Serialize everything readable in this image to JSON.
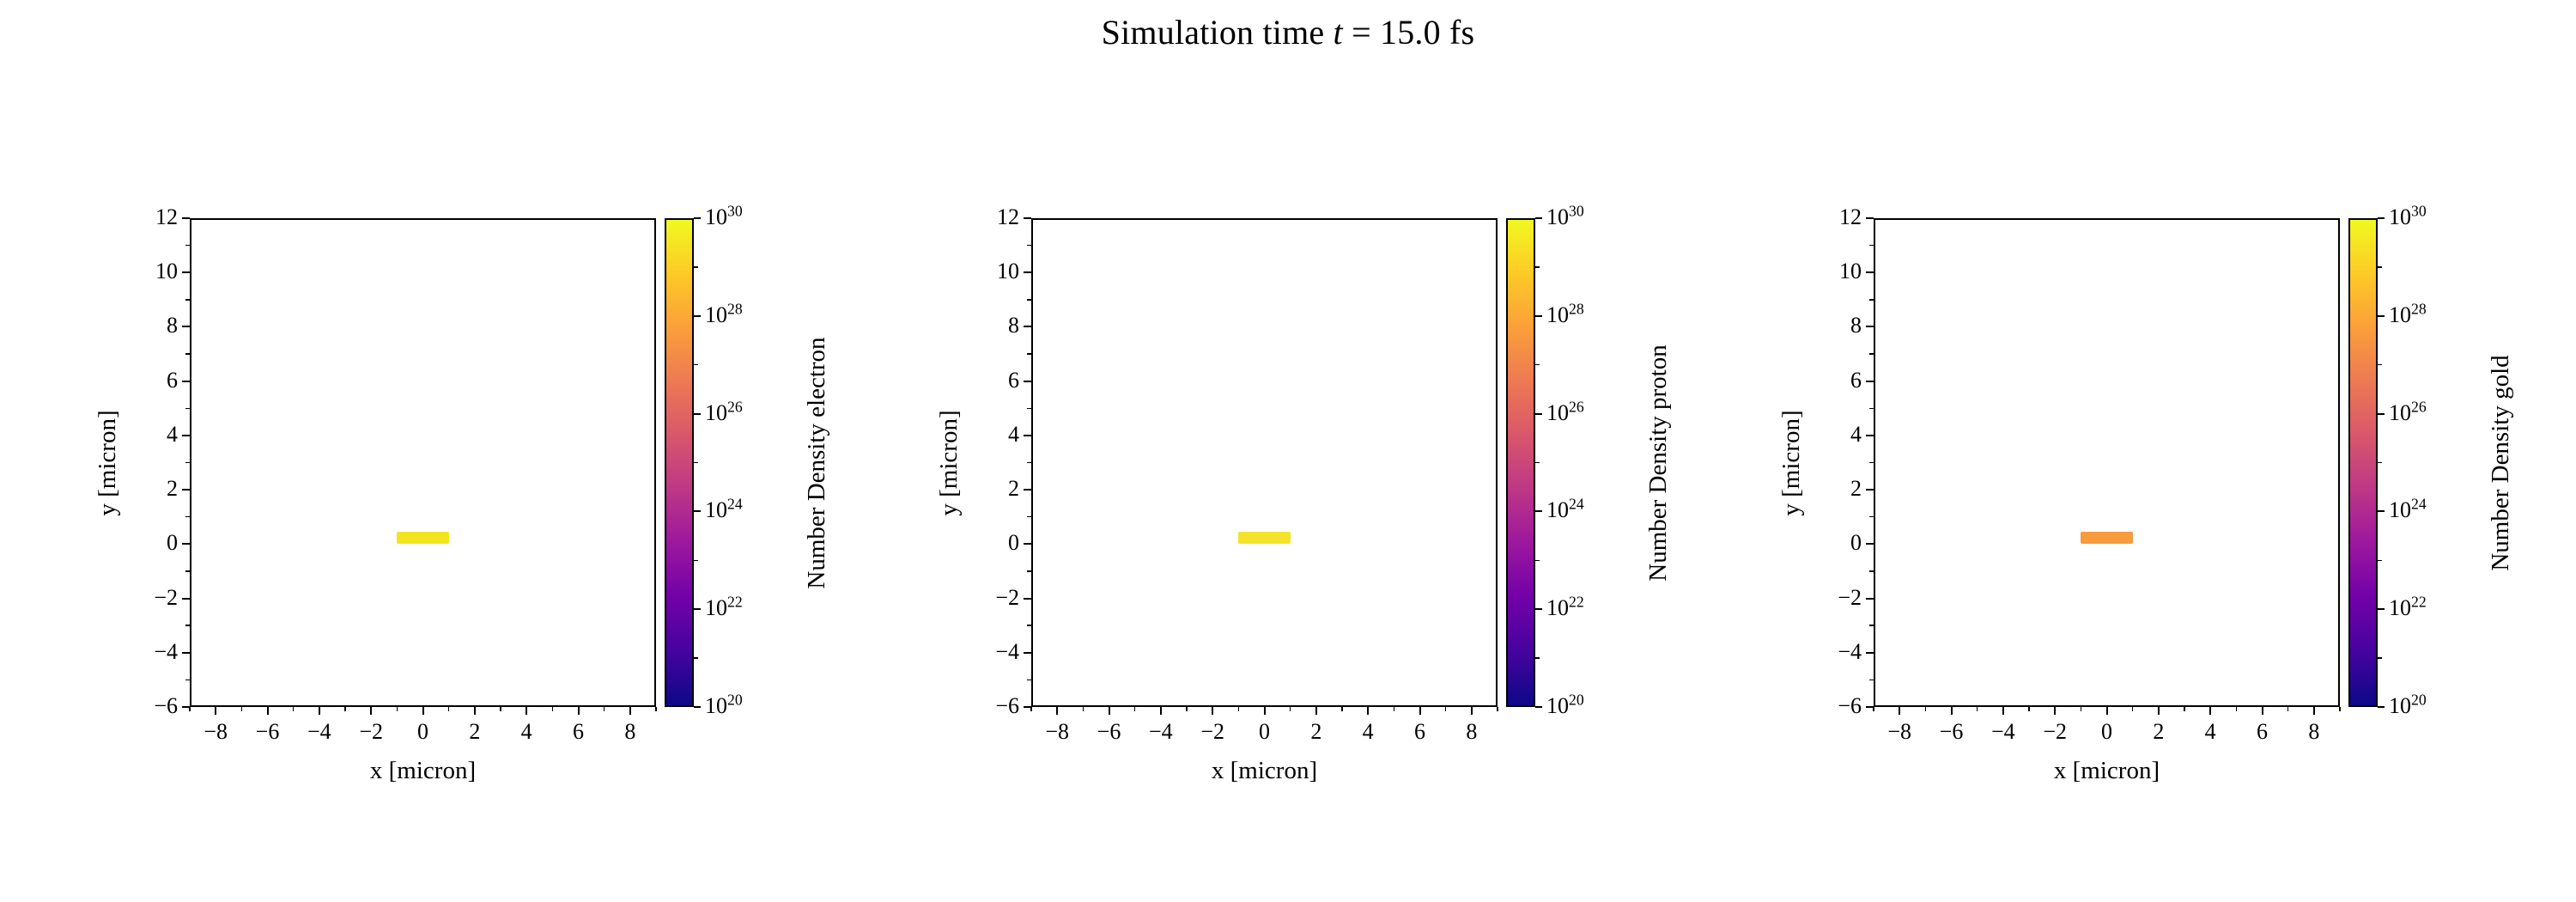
{
  "title": {
    "text": "Simulation time t = 15.0 fs",
    "prefix": "Simulation time ",
    "var": "t",
    "rest": " = 15.0 fs"
  },
  "colors": {
    "background": "#ffffff",
    "axis": "#000000",
    "colormap_name": "plasma",
    "plasma_stops": [
      "#0d0887",
      "#46039f",
      "#7201a8",
      "#9c179e",
      "#bd3786",
      "#d8576b",
      "#ed7953",
      "#fb9f3a",
      "#fdca26",
      "#f0f921"
    ]
  },
  "chart_data": [
    {
      "type": "heatmap",
      "species": "electron",
      "xlabel": "x [micron]",
      "ylabel": "y [micron]",
      "xlim": [
        -9,
        9
      ],
      "ylim": [
        -6,
        12
      ],
      "xticks": [
        -8,
        -6,
        -4,
        -2,
        0,
        2,
        4,
        6,
        8
      ],
      "yticks": [
        -6,
        -4,
        -2,
        0,
        2,
        4,
        6,
        8,
        10,
        12
      ],
      "grid": false,
      "colorbar": {
        "label": "Number Density electron",
        "scale": "log",
        "min_exp": 20,
        "max_exp": 30,
        "tick_exponents": [
          30,
          28,
          26,
          24,
          22,
          20
        ],
        "colormap": "plasma"
      },
      "features": [
        {
          "shape": "rect",
          "x": [
            -1,
            1
          ],
          "y": [
            0,
            0.45
          ],
          "color": "#f2e51e",
          "description": "thin dense slab near y=0, density near 1e30 (top of colormap)"
        }
      ]
    },
    {
      "type": "heatmap",
      "species": "proton",
      "xlabel": "x [micron]",
      "ylabel": "y [micron]",
      "xlim": [
        -9,
        9
      ],
      "ylim": [
        -6,
        12
      ],
      "xticks": [
        -8,
        -6,
        -4,
        -2,
        0,
        2,
        4,
        6,
        8
      ],
      "yticks": [
        -6,
        -4,
        -2,
        0,
        2,
        4,
        6,
        8,
        10,
        12
      ],
      "grid": false,
      "colorbar": {
        "label": "Number Density proton",
        "scale": "log",
        "min_exp": 20,
        "max_exp": 30,
        "tick_exponents": [
          30,
          28,
          26,
          24,
          22,
          20
        ],
        "colormap": "plasma"
      },
      "features": [
        {
          "shape": "rect",
          "x": [
            -1,
            1
          ],
          "y": [
            0,
            0.45
          ],
          "color": "#f3e32a",
          "description": "thin dense slab near y=0, density near 1e30 (top of colormap)"
        }
      ]
    },
    {
      "type": "heatmap",
      "species": "gold",
      "xlabel": "x [micron]",
      "ylabel": "y [micron]",
      "xlim": [
        -9,
        9
      ],
      "ylim": [
        -6,
        12
      ],
      "xticks": [
        -8,
        -6,
        -4,
        -2,
        0,
        2,
        4,
        6,
        8
      ],
      "yticks": [
        -6,
        -4,
        -2,
        0,
        2,
        4,
        6,
        8,
        10,
        12
      ],
      "grid": false,
      "colorbar": {
        "label": "Number Density gold",
        "scale": "log",
        "min_exp": 20,
        "max_exp": 30,
        "tick_exponents": [
          30,
          28,
          26,
          24,
          22,
          20
        ],
        "colormap": "plasma"
      },
      "features": [
        {
          "shape": "rect",
          "x": [
            -1,
            1
          ],
          "y": [
            0,
            0.45
          ],
          "color": "#f69c3e",
          "description": "thin slab near y=0, orange on plasma colormap (~1e28)"
        }
      ]
    }
  ]
}
